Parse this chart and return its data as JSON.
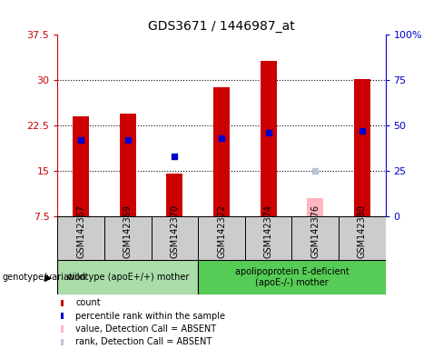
{
  "title": "GDS3671 / 1446987_at",
  "samples": [
    "GSM142367",
    "GSM142369",
    "GSM142370",
    "GSM142372",
    "GSM142374",
    "GSM142376",
    "GSM142380"
  ],
  "count_values": [
    24.0,
    24.5,
    14.5,
    28.8,
    33.2,
    null,
    30.2
  ],
  "absent_count_values": [
    null,
    null,
    null,
    null,
    null,
    10.5,
    null
  ],
  "rank_percentile": [
    42,
    42,
    33,
    43,
    46,
    null,
    47
  ],
  "absent_rank_percentile": [
    null,
    null,
    null,
    null,
    null,
    25,
    null
  ],
  "ylim_left": [
    7.5,
    37.5
  ],
  "ylim_right": [
    0,
    100
  ],
  "yticks_left": [
    7.5,
    15.0,
    22.5,
    30.0,
    37.5
  ],
  "yticks_right": [
    0,
    25,
    50,
    75,
    100
  ],
  "ytick_labels_left": [
    "7.5",
    "15",
    "22.5",
    "30",
    "37.5"
  ],
  "ytick_labels_right": [
    "0",
    "25",
    "50",
    "75",
    "100%"
  ],
  "groups": [
    {
      "label": "wildtype (apoE+/+) mother",
      "indices": [
        0,
        1,
        2
      ],
      "color": "#aaddaa"
    },
    {
      "label": "apolipoprotein E-deficient\n(apoE-/-) mother",
      "indices": [
        3,
        4,
        5,
        6
      ],
      "color": "#55cc55"
    }
  ],
  "bar_color_present": "#cc0000",
  "bar_color_absent": "#ffb6c1",
  "rank_color_present": "#0000cc",
  "rank_color_absent": "#b8c4d8",
  "bar_width": 0.35,
  "left_label_color": "#cc0000",
  "right_label_color": "#0000cc",
  "sample_area_color": "#cccccc",
  "legend_items": [
    {
      "label": "count",
      "color": "#cc0000"
    },
    {
      "label": "percentile rank within the sample",
      "color": "#0000cc"
    },
    {
      "label": "value, Detection Call = ABSENT",
      "color": "#ffb6c1"
    },
    {
      "label": "rank, Detection Call = ABSENT",
      "color": "#b8c4d8"
    }
  ]
}
